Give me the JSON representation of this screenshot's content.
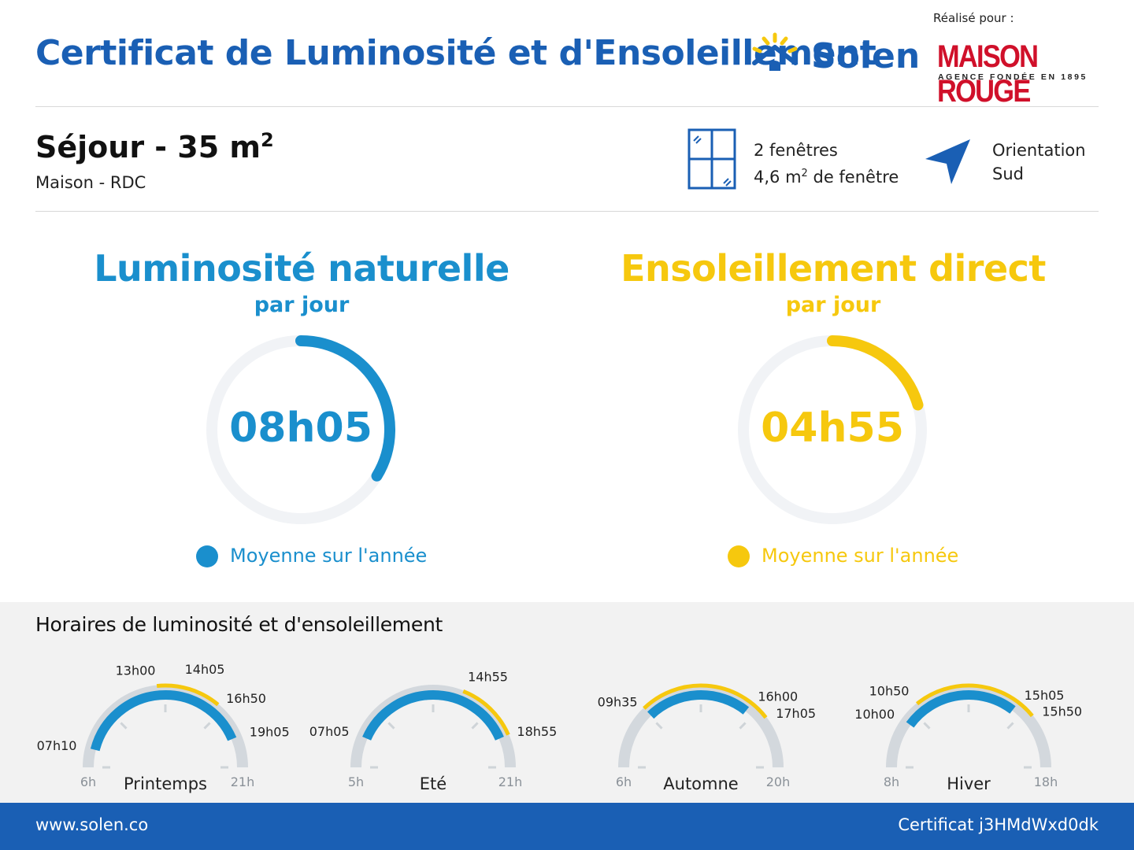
{
  "header": {
    "title": "Certificat de Luminosité et d'Ensoleillement",
    "brand": "Solen",
    "realise_label": "Réalisé pour :",
    "partner_name": "MAISON ROUGE",
    "partner_tagline": "AGENCE FONDÉE EN 1895"
  },
  "room": {
    "title": "Séjour - 35 m",
    "title_exp": "2",
    "subtitle": "Maison - RDC",
    "windows_count": "2 fenêtres",
    "windows_area": "4,6 m",
    "windows_area_exp": "2",
    "windows_area_suffix": " de fenêtre",
    "orientation_label": "Orientation",
    "orientation_value": "Sud"
  },
  "luminosity": {
    "title": "Luminosité naturelle",
    "subtitle": "par jour",
    "value": "08h05",
    "fraction": 0.337,
    "legend": "Moyenne sur l'année",
    "color": "#1a8fcd"
  },
  "sunshine": {
    "title": "Ensoleillement direct",
    "subtitle": "par jour",
    "value": "04h55",
    "fraction": 0.205,
    "legend": "Moyenne sur l'année",
    "color": "#f6c80e"
  },
  "schedule": {
    "title": "Horaires de luminosité et d'ensoleillement",
    "seasons": [
      {
        "name": "Printemps",
        "start": 6,
        "end": 21,
        "start_label": "6h",
        "end_label": "21h",
        "light_from": 7.1667,
        "light_to": 19.0833,
        "light_from_label": "07h10",
        "light_to_label": "19h05",
        "sun_from": 13.0,
        "sun_to": 16.8333,
        "sun_from_label": "13h00",
        "sun_to_label": "16h50",
        "extra_label": "14h05",
        "extra_value": 14.0833
      },
      {
        "name": "Eté",
        "start": 5,
        "end": 21,
        "start_label": "5h",
        "end_label": "21h",
        "light_from": 7.0833,
        "light_to": 18.9167,
        "light_from_label": "07h05",
        "light_to_label": "18h55",
        "sun_from": 14.9167,
        "sun_to": 18.9167,
        "sun_from_label": "14h55",
        "sun_to_label": ""
      },
      {
        "name": "Automne",
        "start": 6,
        "end": 20,
        "start_label": "6h",
        "end_label": "20h",
        "light_from": 9.5833,
        "light_to": 16.0,
        "light_from_label": "09h35",
        "light_to_label": "16h00",
        "sun_from": 9.5833,
        "sun_to": 17.0833,
        "sun_from_label": "",
        "sun_to_label": "17h05"
      },
      {
        "name": "Hiver",
        "start": 8,
        "end": 18,
        "start_label": "8h",
        "end_label": "18h",
        "light_from": 10.0,
        "light_to": 15.0833,
        "light_from_label": "10h00",
        "light_to_label": "15h05",
        "sun_from": 10.8333,
        "sun_to": 15.8333,
        "sun_from_label": "10h50",
        "sun_to_label": "15h50"
      }
    ]
  },
  "footer": {
    "website": "www.solen.co",
    "certificate": "Certificat j3HMdWxd0dk"
  },
  "colors": {
    "primary": "#1a5fb4",
    "light": "#1a8fcd",
    "sun": "#f6c80e",
    "partner": "#d0102a",
    "track": "#d3d8dd"
  },
  "icons": {
    "logo": "house-sun-icon",
    "window": "window-icon",
    "orientation": "navigation-arrow-icon"
  }
}
